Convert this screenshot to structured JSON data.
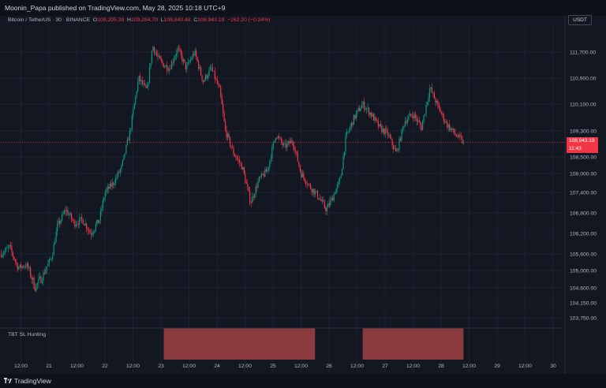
{
  "header": {
    "publish_text": "Moonin_Papa published on TradingView.com, May 28, 2025 10:18 UTC+9"
  },
  "info": {
    "symbol": "Bitcoin / TetherUS · 30 · BINANCE",
    "open_label": "O",
    "open": "109,205.39",
    "high_label": "H",
    "high": "109,284.70",
    "low_label": "L",
    "low": "108,840.48",
    "close_label": "C",
    "close": "108,943.19",
    "change": "−262.20 (−0.24%)"
  },
  "currency_button": "USDT",
  "last_price": {
    "value": "108,943.19",
    "countdown": "11:43"
  },
  "indicator": {
    "name": "TBT SL Hunting"
  },
  "footer": {
    "brand": "TradingView"
  },
  "colors": {
    "up": "#089981",
    "down": "#f23645",
    "background": "#131722",
    "grid": "#1e2230",
    "zone": "#8b3a3e"
  },
  "chart_data": {
    "type": "candlestick",
    "y_ticks": [
      "111,700.00",
      "110,900.00",
      "110,100.00",
      "109,300.00",
      "108,500.00",
      "108,000.00",
      "107,400.00",
      "106,800.00",
      "106,200.00",
      "105,600.00",
      "105,000.00",
      "104,600.00",
      "104,150.00",
      "103,750.00"
    ],
    "y_tick_values": [
      111700,
      110900,
      110100,
      109300,
      108500,
      108000,
      107400,
      106800,
      106200,
      105600,
      105000,
      104600,
      104150,
      103750
    ],
    "x_ticks": [
      "12:00",
      "21",
      "12:00",
      "22",
      "12:00",
      "23",
      "12:00",
      "24",
      "12:00",
      "25",
      "12:00",
      "26",
      "12:00",
      "27",
      "12:00",
      "28",
      "12:00",
      "29",
      "12:00",
      "30"
    ],
    "x_tick_days": [
      20.5,
      21,
      21.5,
      22,
      22.5,
      23,
      23.5,
      24,
      24.5,
      25,
      25.5,
      26,
      26.5,
      27,
      27.5,
      28,
      28.5,
      29,
      29.5,
      30
    ],
    "x_range_days": [
      20.15,
      30.2
    ],
    "y_range": [
      103500,
      112400
    ],
    "path_days": [
      20.15,
      20.3,
      20.45,
      20.6,
      20.75,
      20.9,
      21.05,
      21.15,
      21.3,
      21.45,
      21.6,
      21.75,
      21.9,
      22.0,
      22.15,
      22.3,
      22.45,
      22.6,
      22.75,
      22.85,
      22.95,
      23.05,
      23.15,
      23.3,
      23.45,
      23.6,
      23.75,
      23.9,
      24.05,
      24.15,
      24.3,
      24.45,
      24.6,
      24.75,
      24.9,
      25.05,
      25.2,
      25.35,
      25.5,
      25.65,
      25.8,
      25.95,
      26.05,
      26.2,
      26.3,
      26.45,
      26.6,
      26.75,
      26.9,
      27.05,
      27.2,
      27.35,
      27.5,
      27.65,
      27.8,
      27.95,
      28.1,
      28.25,
      28.4
    ],
    "path_prices": [
      105600,
      105800,
      105100,
      105200,
      104600,
      104900,
      105500,
      106400,
      106900,
      106500,
      106600,
      106200,
      106600,
      107400,
      107700,
      108200,
      109300,
      110900,
      110500,
      111900,
      111500,
      111300,
      111200,
      111800,
      111200,
      111700,
      110800,
      111200,
      110500,
      109300,
      108600,
      108200,
      107100,
      107800,
      108100,
      109200,
      108800,
      109000,
      108000,
      107600,
      107300,
      106900,
      107200,
      107800,
      109100,
      109700,
      110100,
      109800,
      109400,
      109200,
      108600,
      109600,
      109800,
      109400,
      110600,
      110000,
      109500,
      109200,
      108943
    ],
    "last_close": 108943.19,
    "highlight_zones_days": [
      [
        23.05,
        25.75
      ],
      [
        26.6,
        28.4
      ]
    ]
  }
}
